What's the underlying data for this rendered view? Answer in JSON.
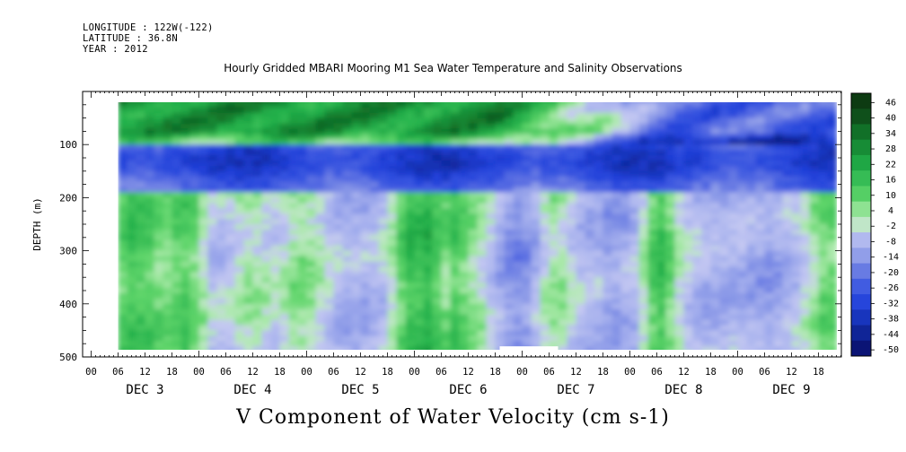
{
  "header": {
    "longitude": "LONGITUDE : 122W(-122)",
    "latitude": "LATITUDE : 36.8N",
    "year": "YEAR : 2012"
  },
  "chart_data": {
    "type": "heatmap",
    "title": "Hourly Gridded MBARI Mooring M1 Sea Water Temperature and Salinity Observations",
    "xlabel": "V Component of Water Velocity (cm s-1)",
    "ylabel": "DEPTH (m)",
    "ylim": [
      500,
      0
    ],
    "yticks": [
      100,
      200,
      300,
      400,
      500
    ],
    "x_hour_labels": [
      "00",
      "06",
      "12",
      "18"
    ],
    "days": [
      "DEC 3",
      "DEC 4",
      "DEC 5",
      "DEC 6",
      "DEC 7",
      "DEC 8",
      "DEC 9"
    ],
    "data_depth_range": [
      20,
      490
    ],
    "data_start_hour": 6,
    "data_gap": {
      "day": "DEC 7",
      "from_hour": -5,
      "to_hour": 8,
      "depth_from": 480,
      "depth_to": 490
    },
    "colorbar": {
      "levels": [
        46,
        40,
        34,
        28,
        22,
        16,
        10,
        4,
        -2,
        -8,
        -14,
        -20,
        -26,
        -32,
        -38,
        -44,
        -50
      ],
      "colors": {
        "strong_positive": "#0a3d12",
        "positive": "#22b04a",
        "weak_positive": "#a6e8a6",
        "zero": "#c8d0f0",
        "weak_negative": "#9aa8ea",
        "negative": "#2244e0",
        "strong_negative": "#0a0f6a"
      }
    },
    "field_description_bands": [
      {
        "depth": [
          20,
          100
        ],
        "trend": "positive (green) early DEC 3–DEC 6, becoming negative (blue) after DEC 6"
      },
      {
        "depth": [
          100,
          180
        ],
        "trend": "negative (blue) band throughout"
      },
      {
        "depth": [
          180,
          490
        ],
        "trend": "alternating weak negative (lavender) and weak positive (light green) streaks"
      }
    ]
  }
}
